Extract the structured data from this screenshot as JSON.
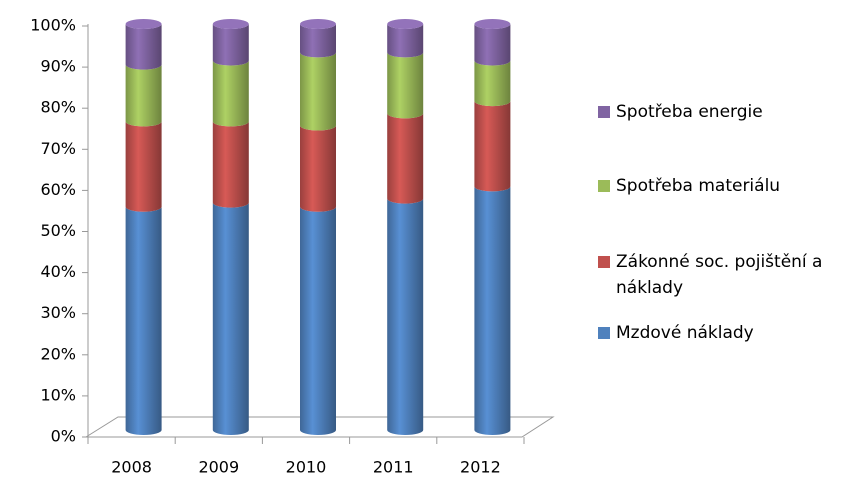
{
  "chart_data": {
    "type": "bar3d_stacked",
    "categories": [
      "2008",
      "2009",
      "2010",
      "2011",
      "2012"
    ],
    "series": [
      {
        "name": "Mzdové náklady",
        "color": "#4f81bd",
        "values": [
          55,
          56,
          55,
          57,
          60
        ]
      },
      {
        "name": "Zákonné soc. pojištění a náklady",
        "color": "#c0504d",
        "values": [
          21,
          20,
          20,
          21,
          21
        ]
      },
      {
        "name": "Spotřeba materiálu",
        "color": "#9bbb59",
        "values": [
          14,
          15,
          18,
          15,
          10
        ]
      },
      {
        "name": "Spotřeba energie",
        "color": "#8064a2",
        "values": [
          10,
          9,
          7,
          7,
          9
        ]
      }
    ],
    "ylim": [
      0,
      100
    ],
    "yticks": [
      {
        "value": 0,
        "label": "0%"
      },
      {
        "value": 10,
        "label": "10%"
      },
      {
        "value": 20,
        "label": "20%"
      },
      {
        "value": 30,
        "label": "30%"
      },
      {
        "value": 40,
        "label": "40%"
      },
      {
        "value": 50,
        "label": "50%"
      },
      {
        "value": 60,
        "label": "60%"
      },
      {
        "value": 70,
        "label": "70%"
      },
      {
        "value": 80,
        "label": "80%"
      },
      {
        "value": 90,
        "label": "90%"
      },
      {
        "value": 100,
        "label": "100%"
      }
    ],
    "legend": "right"
  }
}
